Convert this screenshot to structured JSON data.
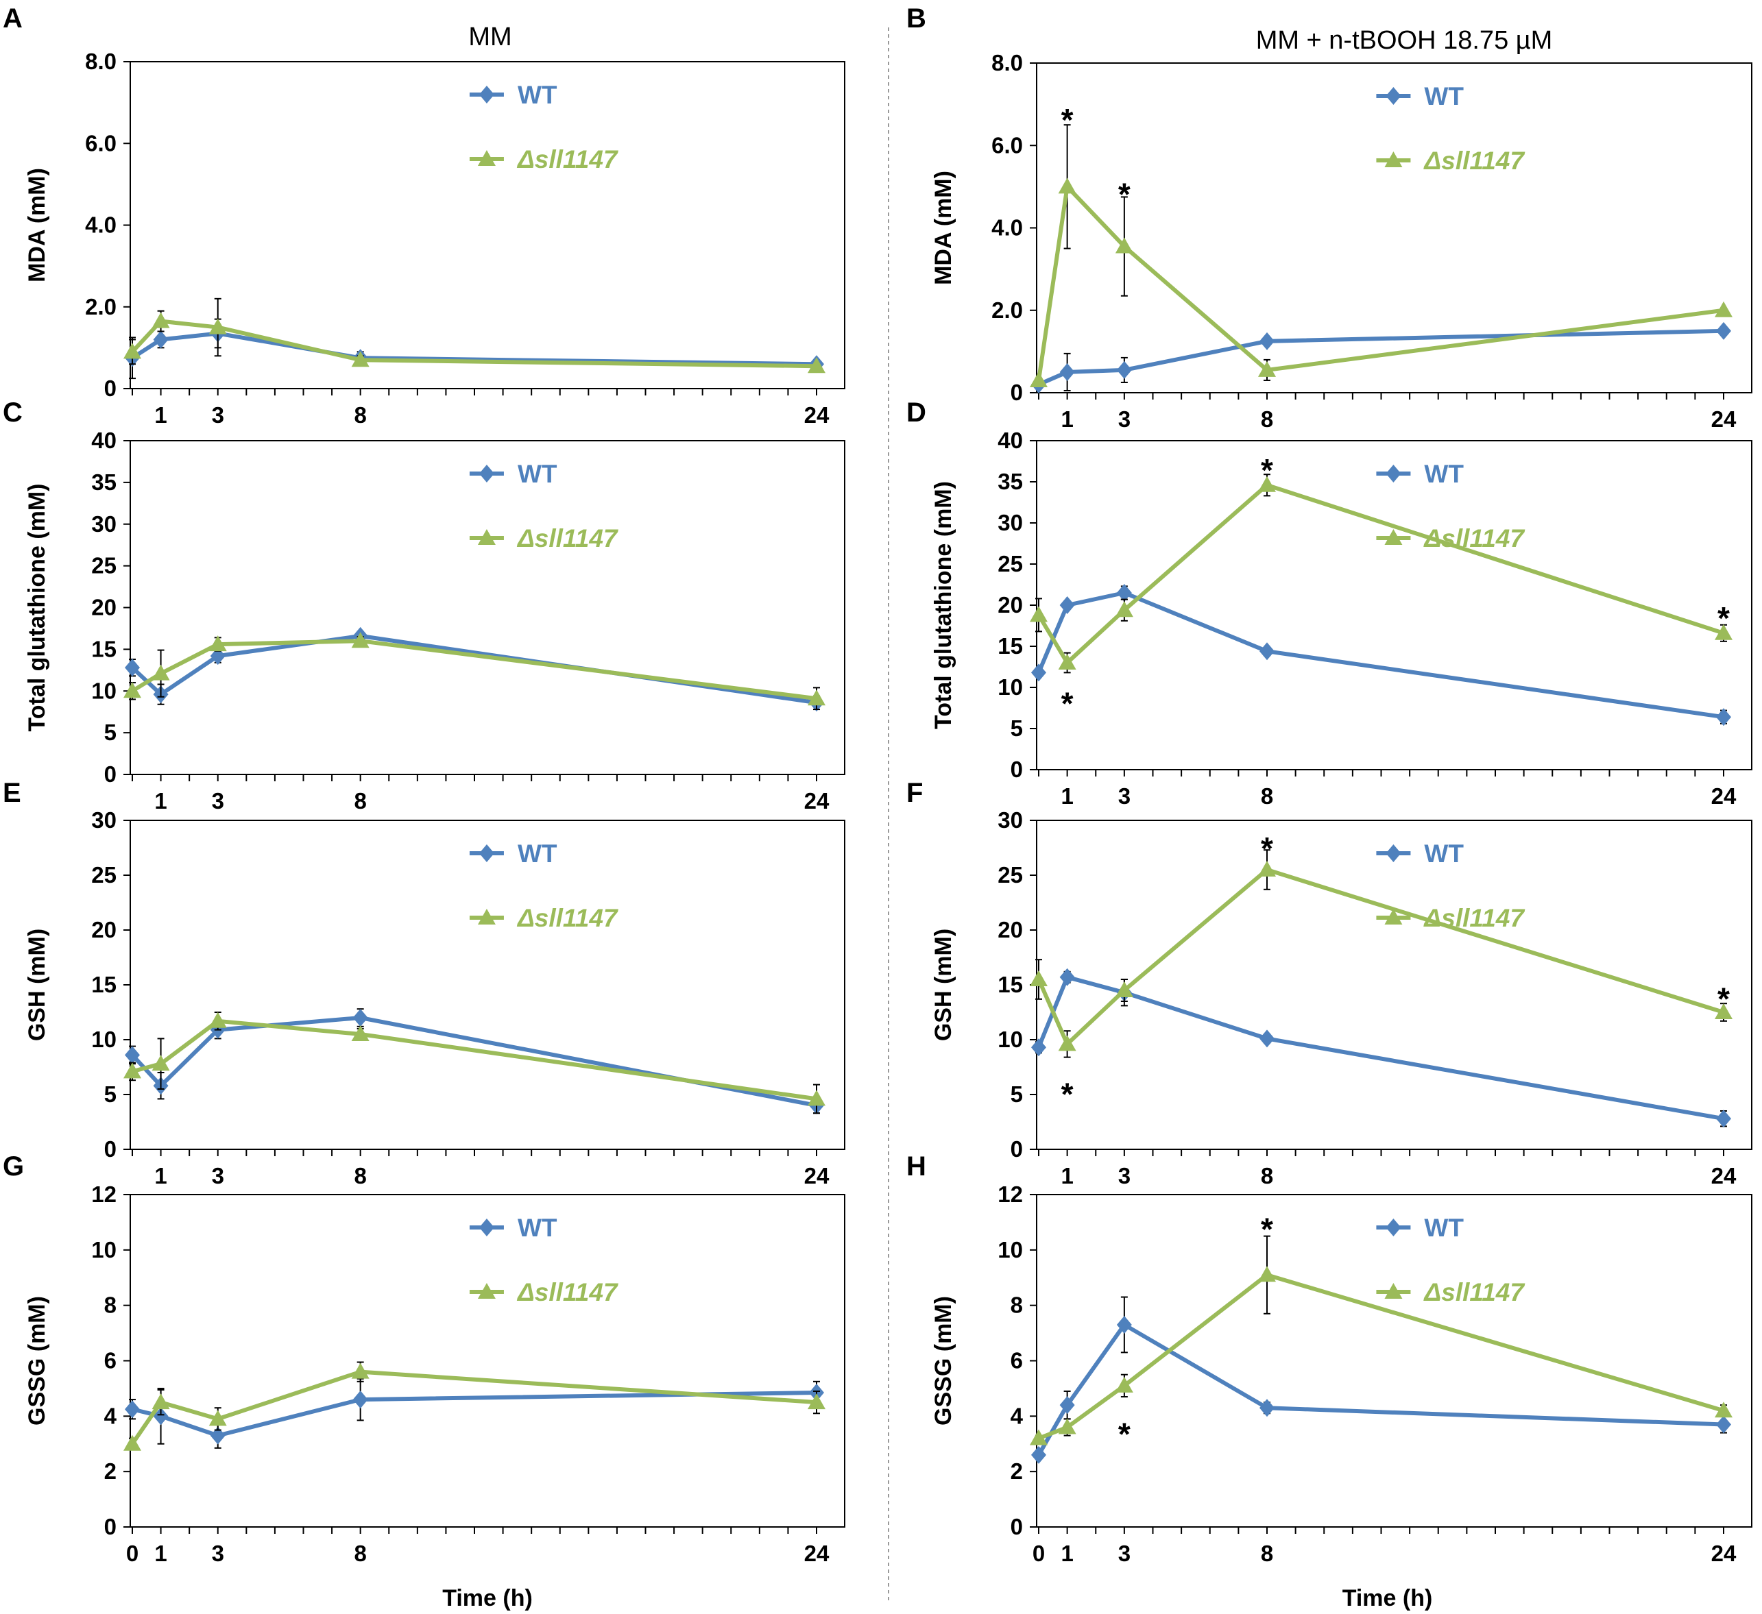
{
  "figure": {
    "col_titles": [
      "MM",
      "MM + n-tBOOH 18.75 µM"
    ],
    "xlabel": "Time (h)",
    "colors": {
      "wt": "#4f81bd",
      "mutant": "#9bbb59"
    }
  },
  "chart_data": [
    {
      "panel": "A",
      "type": "line",
      "ylabel": "MDA (mM)",
      "ylim": [
        0,
        8
      ],
      "yticks": [
        "0",
        "2.0",
        "4.0",
        "6.0",
        "8.0"
      ],
      "x": [
        0,
        1,
        3,
        8,
        24
      ],
      "xticks": [
        "1",
        "3",
        "8",
        "24"
      ],
      "series": [
        {
          "name": "WT",
          "values": [
            0.75,
            1.2,
            1.35,
            0.75,
            0.6
          ],
          "errors": [
            0.5,
            0.2,
            0.35,
            0.15,
            0.05
          ]
        },
        {
          "name": "Δsll1147",
          "values": [
            0.9,
            1.65,
            1.5,
            0.7,
            0.55
          ],
          "errors": [
            0.3,
            0.25,
            0.7,
            0.1,
            0.05
          ]
        }
      ],
      "stars": []
    },
    {
      "panel": "B",
      "type": "line",
      "ylabel": "MDA (mM)",
      "ylim": [
        0,
        8
      ],
      "yticks": [
        "0",
        "2.0",
        "4.0",
        "6.0",
        "8.0"
      ],
      "x": [
        0,
        1,
        3,
        8,
        24
      ],
      "xticks": [
        "1",
        "3",
        "8",
        "24"
      ],
      "series": [
        {
          "name": "WT",
          "values": [
            0.2,
            0.5,
            0.55,
            1.25,
            1.5
          ],
          "errors": [
            0.05,
            0.45,
            0.3,
            0.1,
            0.05
          ]
        },
        {
          "name": "Δsll1147",
          "values": [
            0.3,
            5.0,
            3.55,
            0.55,
            2.0
          ],
          "errors": [
            0.05,
            1.5,
            1.2,
            0.25,
            0.05
          ]
        }
      ],
      "stars": [
        {
          "x": 1,
          "y": 6.85,
          "text": "*"
        },
        {
          "x": 3,
          "y": 5.05,
          "text": "*"
        }
      ]
    },
    {
      "panel": "C",
      "type": "line",
      "ylabel": "Total glutathione (mM)",
      "ylim": [
        0,
        40
      ],
      "yticks": [
        "0",
        "5",
        "10",
        "15",
        "20",
        "25",
        "30",
        "35",
        "40"
      ],
      "x": [
        0,
        1,
        3,
        8,
        24
      ],
      "xticks": [
        "1",
        "3",
        "8",
        "24"
      ],
      "series": [
        {
          "name": "WT",
          "values": [
            12.8,
            9.6,
            14.2,
            16.6,
            8.6
          ],
          "errors": [
            1.0,
            1.2,
            0.8,
            0.5,
            0.8
          ]
        },
        {
          "name": "Δsll1147",
          "values": [
            10.0,
            12.1,
            15.6,
            16.0,
            9.1
          ],
          "errors": [
            1.0,
            2.8,
            0.8,
            0.5,
            1.3
          ]
        }
      ],
      "stars": []
    },
    {
      "panel": "D",
      "type": "line",
      "ylabel": "Total glutathione (mM)",
      "ylim": [
        0,
        40
      ],
      "yticks": [
        "0",
        "5",
        "10",
        "15",
        "20",
        "25",
        "30",
        "35",
        "40"
      ],
      "x": [
        0,
        1,
        3,
        8,
        24
      ],
      "xticks": [
        "1",
        "3",
        "8",
        "24"
      ],
      "series": [
        {
          "name": "WT",
          "values": [
            11.8,
            20.0,
            21.5,
            14.4,
            6.4
          ],
          "errors": [
            0.5,
            0.5,
            0.8,
            0.4,
            0.8
          ]
        },
        {
          "name": "Δsll1147",
          "values": [
            18.8,
            13.0,
            19.4,
            34.6,
            16.6
          ],
          "errors": [
            2.0,
            1.2,
            1.3,
            1.3,
            1.0
          ]
        }
      ],
      "stars": [
        {
          "x": 8,
          "y": 37.6,
          "text": "*"
        },
        {
          "x": 1,
          "y": 9.2,
          "text": "*"
        },
        {
          "x": 24,
          "y": 19.6,
          "text": "*"
        }
      ]
    },
    {
      "panel": "E",
      "type": "line",
      "ylabel": "GSH (mM)",
      "ylim": [
        0,
        30
      ],
      "yticks": [
        "0",
        "5",
        "10",
        "15",
        "20",
        "25",
        "30"
      ],
      "x": [
        0,
        1,
        3,
        8,
        24
      ],
      "xticks": [
        "1",
        "3",
        "8",
        "24"
      ],
      "series": [
        {
          "name": "WT",
          "values": [
            8.6,
            5.8,
            10.9,
            12.0,
            4.0
          ],
          "errors": [
            0.8,
            1.2,
            0.8,
            0.8,
            0.7
          ]
        },
        {
          "name": "Δsll1147",
          "values": [
            7.1,
            7.8,
            11.7,
            10.5,
            4.6
          ],
          "errors": [
            0.8,
            2.3,
            0.8,
            0.5,
            1.3
          ]
        }
      ],
      "stars": []
    },
    {
      "panel": "F",
      "type": "line",
      "ylabel": "GSH (mM)",
      "ylim": [
        0,
        30
      ],
      "yticks": [
        "0",
        "5",
        "10",
        "15",
        "20",
        "25",
        "30"
      ],
      "x": [
        0,
        1,
        3,
        8,
        24
      ],
      "xticks": [
        "1",
        "3",
        "8",
        "24"
      ],
      "series": [
        {
          "name": "WT",
          "values": [
            9.3,
            15.7,
            14.3,
            10.1,
            2.8
          ],
          "errors": [
            0.5,
            0.5,
            1.2,
            0.4,
            0.7
          ]
        },
        {
          "name": "Δsll1147",
          "values": [
            15.5,
            9.6,
            14.5,
            25.5,
            12.5
          ],
          "errors": [
            1.8,
            1.2,
            1.0,
            1.8,
            0.8
          ]
        }
      ],
      "stars": [
        {
          "x": 8,
          "y": 28.3,
          "text": "*"
        },
        {
          "x": 1,
          "y": 5.9,
          "text": "*"
        },
        {
          "x": 24,
          "y": 14.6,
          "text": "*"
        }
      ]
    },
    {
      "panel": "G",
      "type": "line",
      "ylabel": "GSSG (mM)",
      "xlabel": "Time (h)",
      "ylim": [
        0,
        12
      ],
      "yticks": [
        "0",
        "2",
        "4",
        "6",
        "8",
        "10",
        "12"
      ],
      "x": [
        0,
        1,
        3,
        8,
        24
      ],
      "xticks": [
        "0",
        "1",
        "3",
        "8",
        "24"
      ],
      "series": [
        {
          "name": "WT",
          "values": [
            4.25,
            4.0,
            3.3,
            4.6,
            4.85
          ],
          "errors": [
            0.35,
            1.0,
            0.45,
            0.75,
            0.4
          ]
        },
        {
          "name": "Δsll1147",
          "values": [
            3.0,
            4.5,
            3.9,
            5.6,
            4.5
          ],
          "errors": [
            0.2,
            0.45,
            0.4,
            0.35,
            0.4
          ]
        }
      ],
      "stars": []
    },
    {
      "panel": "H",
      "type": "line",
      "ylabel": "GSSG (mM)",
      "xlabel": "Time (h)",
      "ylim": [
        0,
        12
      ],
      "yticks": [
        "0",
        "2",
        "4",
        "6",
        "8",
        "10",
        "12"
      ],
      "x": [
        0,
        1,
        3,
        8,
        24
      ],
      "xticks": [
        "0",
        "1",
        "3",
        "8",
        "24"
      ],
      "series": [
        {
          "name": "WT",
          "values": [
            2.6,
            4.4,
            7.3,
            4.3,
            3.7
          ],
          "errors": [
            0.1,
            0.5,
            1.0,
            0.2,
            0.3
          ]
        },
        {
          "name": "Δsll1147",
          "values": [
            3.2,
            3.6,
            5.1,
            9.1,
            4.2
          ],
          "errors": [
            0.1,
            0.3,
            0.4,
            1.4,
            0.2
          ]
        }
      ],
      "stars": [
        {
          "x": 8,
          "y": 11.1,
          "text": "*"
        },
        {
          "x": 3,
          "y": 3.7,
          "text": "*"
        }
      ]
    }
  ]
}
